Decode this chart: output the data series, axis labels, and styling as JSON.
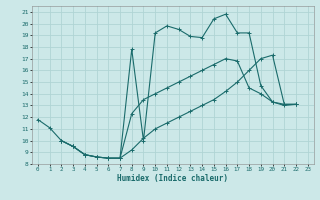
{
  "title": "",
  "xlabel": "Humidex (Indice chaleur)",
  "bg_color": "#cce8e8",
  "grid_color": "#b0d4d4",
  "line_color": "#1a6b6b",
  "xlim": [
    -0.5,
    23.5
  ],
  "ylim": [
    8,
    21.5
  ],
  "xticks": [
    0,
    1,
    2,
    3,
    4,
    5,
    6,
    7,
    8,
    9,
    10,
    11,
    12,
    13,
    14,
    15,
    16,
    17,
    18,
    19,
    20,
    21,
    22,
    23
  ],
  "yticks": [
    8,
    9,
    10,
    11,
    12,
    13,
    14,
    15,
    16,
    17,
    18,
    19,
    20,
    21
  ],
  "line1_x": [
    0,
    1,
    2,
    3,
    4,
    5,
    6,
    7,
    8,
    9,
    10,
    11,
    12,
    13,
    14,
    15,
    16,
    17,
    18,
    19,
    20,
    21,
    22
  ],
  "line1_y": [
    11.8,
    11.1,
    10.0,
    9.5,
    8.8,
    8.6,
    8.5,
    8.5,
    17.8,
    10.0,
    19.2,
    19.8,
    19.5,
    18.9,
    18.8,
    20.4,
    20.8,
    19.2,
    19.2,
    14.7,
    13.3,
    13.0,
    13.1
  ],
  "line2_x": [
    2,
    3,
    4,
    5,
    6,
    7,
    8,
    9,
    10,
    11,
    12,
    13,
    14,
    15,
    16,
    17,
    18,
    19,
    20,
    21,
    22
  ],
  "line2_y": [
    10.0,
    9.5,
    8.8,
    8.6,
    8.5,
    8.5,
    12.3,
    13.5,
    14.0,
    14.5,
    15.0,
    15.5,
    16.0,
    16.5,
    17.0,
    16.8,
    14.5,
    14.0,
    13.3,
    13.1,
    13.1
  ],
  "line3_x": [
    2,
    3,
    4,
    5,
    6,
    7,
    8,
    9,
    10,
    11,
    12,
    13,
    14,
    15,
    16,
    17,
    18,
    19,
    20,
    21,
    22
  ],
  "line3_y": [
    10.0,
    9.5,
    8.8,
    8.6,
    8.5,
    8.5,
    9.2,
    10.2,
    11.0,
    11.5,
    12.0,
    12.5,
    13.0,
    13.5,
    14.2,
    15.0,
    16.0,
    17.0,
    17.3,
    13.1,
    13.1
  ]
}
